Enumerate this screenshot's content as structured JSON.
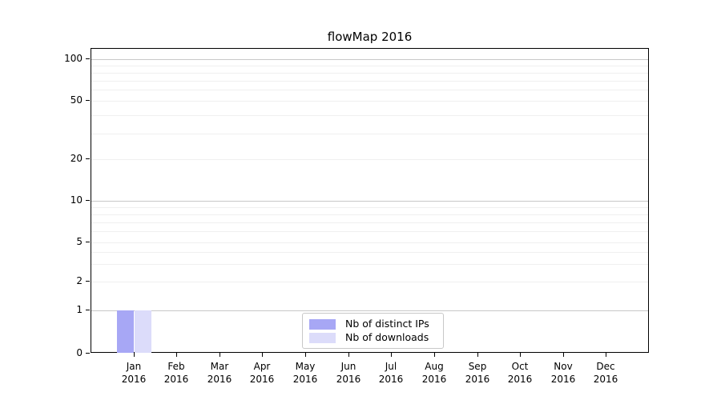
{
  "figure": {
    "title": "flowMap 2016",
    "background_color": "#ffffff"
  },
  "chart_data": {
    "type": "bar",
    "title": "flowMap 2016",
    "categories": [
      {
        "month": "Jan",
        "year": "2016"
      },
      {
        "month": "Feb",
        "year": "2016"
      },
      {
        "month": "Mar",
        "year": "2016"
      },
      {
        "month": "Apr",
        "year": "2016"
      },
      {
        "month": "May",
        "year": "2016"
      },
      {
        "month": "Jun",
        "year": "2016"
      },
      {
        "month": "Jul",
        "year": "2016"
      },
      {
        "month": "Aug",
        "year": "2016"
      },
      {
        "month": "Sep",
        "year": "2016"
      },
      {
        "month": "Oct",
        "year": "2016"
      },
      {
        "month": "Nov",
        "year": "2016"
      },
      {
        "month": "Dec",
        "year": "2016"
      }
    ],
    "series": [
      {
        "name": "Nb of distinct IPs",
        "color": "#a7a7f5",
        "values": [
          1,
          0,
          0,
          0,
          0,
          0,
          0,
          0,
          0,
          0,
          0,
          0
        ]
      },
      {
        "name": "Nb of downloads",
        "color": "#dcdcfa",
        "values": [
          1,
          0,
          0,
          0,
          0,
          0,
          0,
          0,
          0,
          0,
          0,
          0
        ]
      }
    ],
    "xlabel": "",
    "ylabel": "",
    "y_axis": {
      "scale": "log-like",
      "tick_values": [
        0,
        1,
        2,
        5,
        10,
        20,
        50,
        100
      ],
      "minor_grid_values": [
        2,
        3,
        4,
        5,
        6,
        7,
        8,
        9,
        20,
        30,
        40,
        50,
        60,
        70,
        80,
        90
      ],
      "major_grid_values": [
        1,
        10,
        100
      ],
      "ylim": [
        0,
        110
      ]
    },
    "grid": "horizontal major and minor gridlines",
    "legend": {
      "position": "lower center",
      "entries": [
        "Nb of distinct IPs",
        "Nb of downloads"
      ]
    },
    "colors": {
      "major_grid": "#c8c8c8",
      "minor_grid": "#f0f0f0",
      "spine": "#000000",
      "text": "#000000"
    }
  }
}
